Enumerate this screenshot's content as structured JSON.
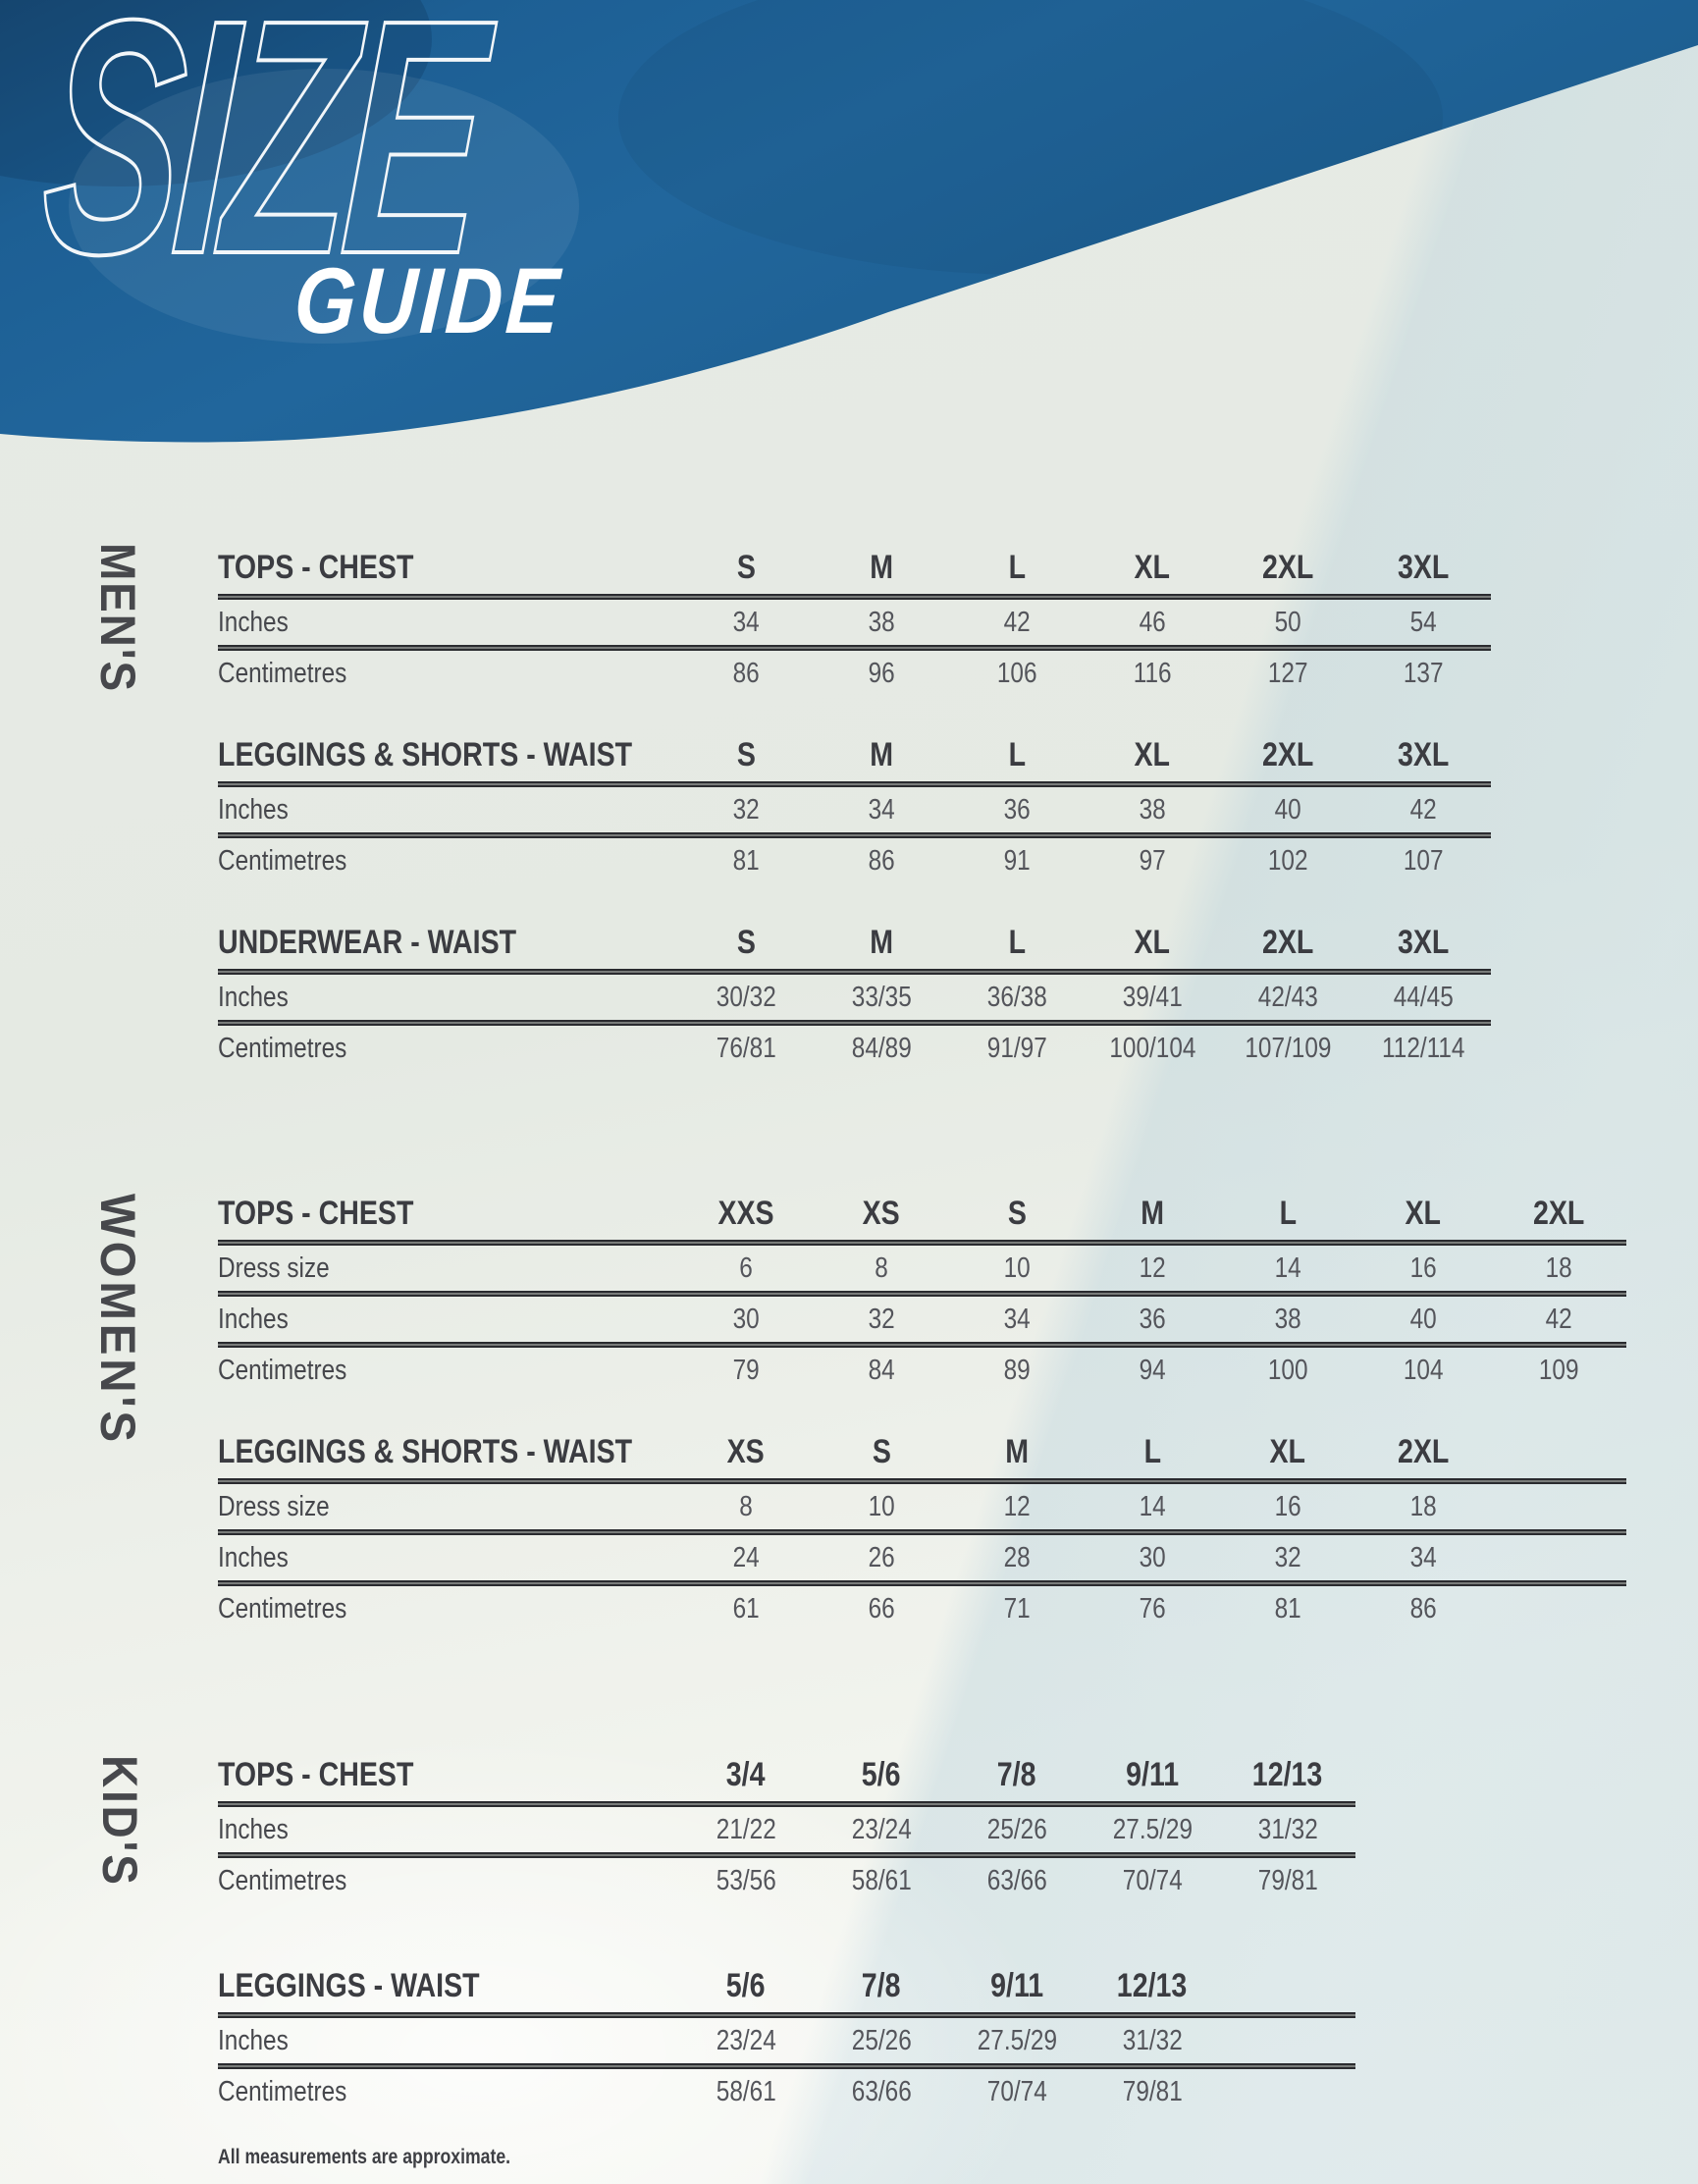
{
  "header": {
    "title_outline": "SIZE",
    "title_solid": "GUIDE",
    "blue": "#20639a",
    "blue_dark": "#174e7c"
  },
  "sections": [
    {
      "id": "mens",
      "label": "MEN'S",
      "tables": [
        {
          "title": "TOPS - CHEST",
          "sizes": [
            "S",
            "M",
            "L",
            "XL",
            "2XL",
            "3XL"
          ],
          "rows": [
            {
              "label": "Inches",
              "values": [
                "34",
                "38",
                "42",
                "46",
                "50",
                "54"
              ]
            },
            {
              "label": "Centimetres",
              "values": [
                "86",
                "96",
                "106",
                "116",
                "127",
                "137"
              ]
            }
          ]
        },
        {
          "title": "LEGGINGS & SHORTS - WAIST",
          "sizes": [
            "S",
            "M",
            "L",
            "XL",
            "2XL",
            "3XL"
          ],
          "rows": [
            {
              "label": "Inches",
              "values": [
                "32",
                "34",
                "36",
                "38",
                "40",
                "42"
              ]
            },
            {
              "label": "Centimetres",
              "values": [
                "81",
                "86",
                "91",
                "97",
                "102",
                "107"
              ]
            }
          ]
        },
        {
          "title": "UNDERWEAR - WAIST",
          "sizes": [
            "S",
            "M",
            "L",
            "XL",
            "2XL",
            "3XL"
          ],
          "rows": [
            {
              "label": "Inches",
              "values": [
                "30/32",
                "33/35",
                "36/38",
                "39/41",
                "42/43",
                "44/45"
              ]
            },
            {
              "label": "Centimetres",
              "values": [
                "76/81",
                "84/89",
                "91/97",
                "100/104",
                "107/109",
                "112/114"
              ]
            }
          ]
        }
      ]
    },
    {
      "id": "womens",
      "label": "WOMEN'S",
      "tables": [
        {
          "title": "TOPS - CHEST",
          "sizes": [
            "XXS",
            "XS",
            "S",
            "M",
            "L",
            "XL",
            "2XL"
          ],
          "rows": [
            {
              "label": "Dress size",
              "values": [
                "6",
                "8",
                "10",
                "12",
                "14",
                "16",
                "18"
              ]
            },
            {
              "label": "Inches",
              "values": [
                "30",
                "32",
                "34",
                "36",
                "38",
                "40",
                "42"
              ]
            },
            {
              "label": "Centimetres",
              "values": [
                "79",
                "84",
                "89",
                "94",
                "100",
                "104",
                "109"
              ]
            }
          ]
        },
        {
          "title": "LEGGINGS & SHORTS - WAIST",
          "sizes": [
            "XS",
            "S",
            "M",
            "L",
            "XL",
            "2XL"
          ],
          "rows": [
            {
              "label": "Dress size",
              "values": [
                "8",
                "10",
                "12",
                "14",
                "16",
                "18"
              ]
            },
            {
              "label": "Inches",
              "values": [
                "24",
                "26",
                "28",
                "30",
                "32",
                "34"
              ]
            },
            {
              "label": "Centimetres",
              "values": [
                "61",
                "66",
                "71",
                "76",
                "81",
                "86"
              ]
            }
          ]
        }
      ]
    },
    {
      "id": "kids",
      "label": "KID'S",
      "tables": [
        {
          "title": "TOPS - CHEST",
          "sizes": [
            "3/4",
            "5/6",
            "7/8",
            "9/11",
            "12/13"
          ],
          "rows": [
            {
              "label": "Inches",
              "values": [
                "21/22",
                "23/24",
                "25/26",
                "27.5/29",
                "31/32"
              ]
            },
            {
              "label": "Centimetres",
              "values": [
                "53/56",
                "58/61",
                "63/66",
                "70/74",
                "79/81"
              ]
            }
          ]
        },
        {
          "title": "LEGGINGS - WAIST",
          "sizes": [
            "5/6",
            "7/8",
            "9/11",
            "12/13"
          ],
          "rows": [
            {
              "label": "Inches",
              "values": [
                "23/24",
                "25/26",
                "27.5/29",
                "31/32"
              ]
            },
            {
              "label": "Centimetres",
              "values": [
                "58/61",
                "63/66",
                "70/74",
                "79/81"
              ]
            }
          ]
        }
      ]
    }
  ],
  "footnote": "All measurements are approximate."
}
